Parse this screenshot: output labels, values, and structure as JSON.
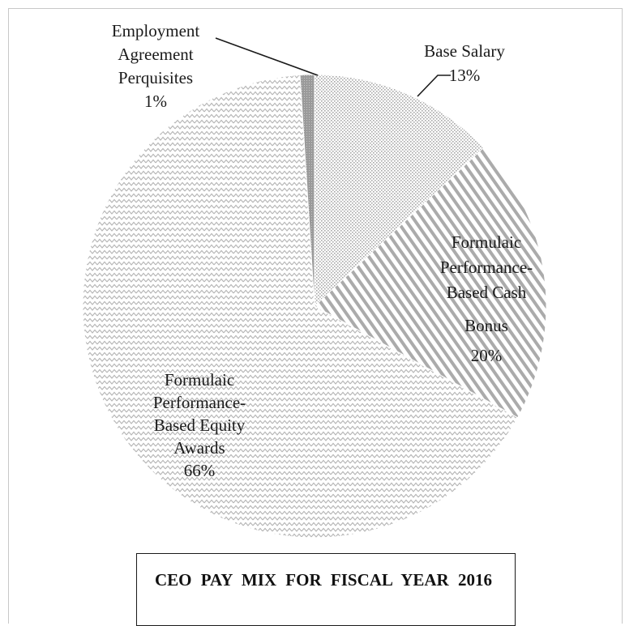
{
  "chart_data": {
    "type": "pie",
    "title": "CEO PAY MIX FOR FISCAL YEAR 2016",
    "slices": [
      {
        "name": "Base Salary",
        "value": 13,
        "label_lines": [
          "Base Salary",
          "13%"
        ],
        "pattern": "dots"
      },
      {
        "name": "Formulaic Performance-Based Cash Bonus",
        "value": 20,
        "label_lines": [
          "Formulaic",
          "Performance-",
          "Based Cash",
          "Bonus",
          "20%"
        ],
        "pattern": "stripes"
      },
      {
        "name": "Formulaic Performance-Based Equity Awards",
        "value": 66,
        "label_lines": [
          "Formulaic",
          "Performance-",
          "Based Equity",
          "Awards",
          "66%"
        ],
        "pattern": "waves"
      },
      {
        "name": "Employment Agreement Perquisites",
        "value": 1,
        "label_lines": [
          "Employment",
          "Agreement",
          "Perquisites",
          "1%"
        ],
        "pattern": "solid-gray"
      }
    ],
    "start_angle_deg": 0,
    "direction": "clockwise",
    "legend": "none",
    "colors": {
      "pattern_ink": "#a9a9a9",
      "text": "#1a1a1a",
      "border": "#1a1a1a"
    }
  }
}
